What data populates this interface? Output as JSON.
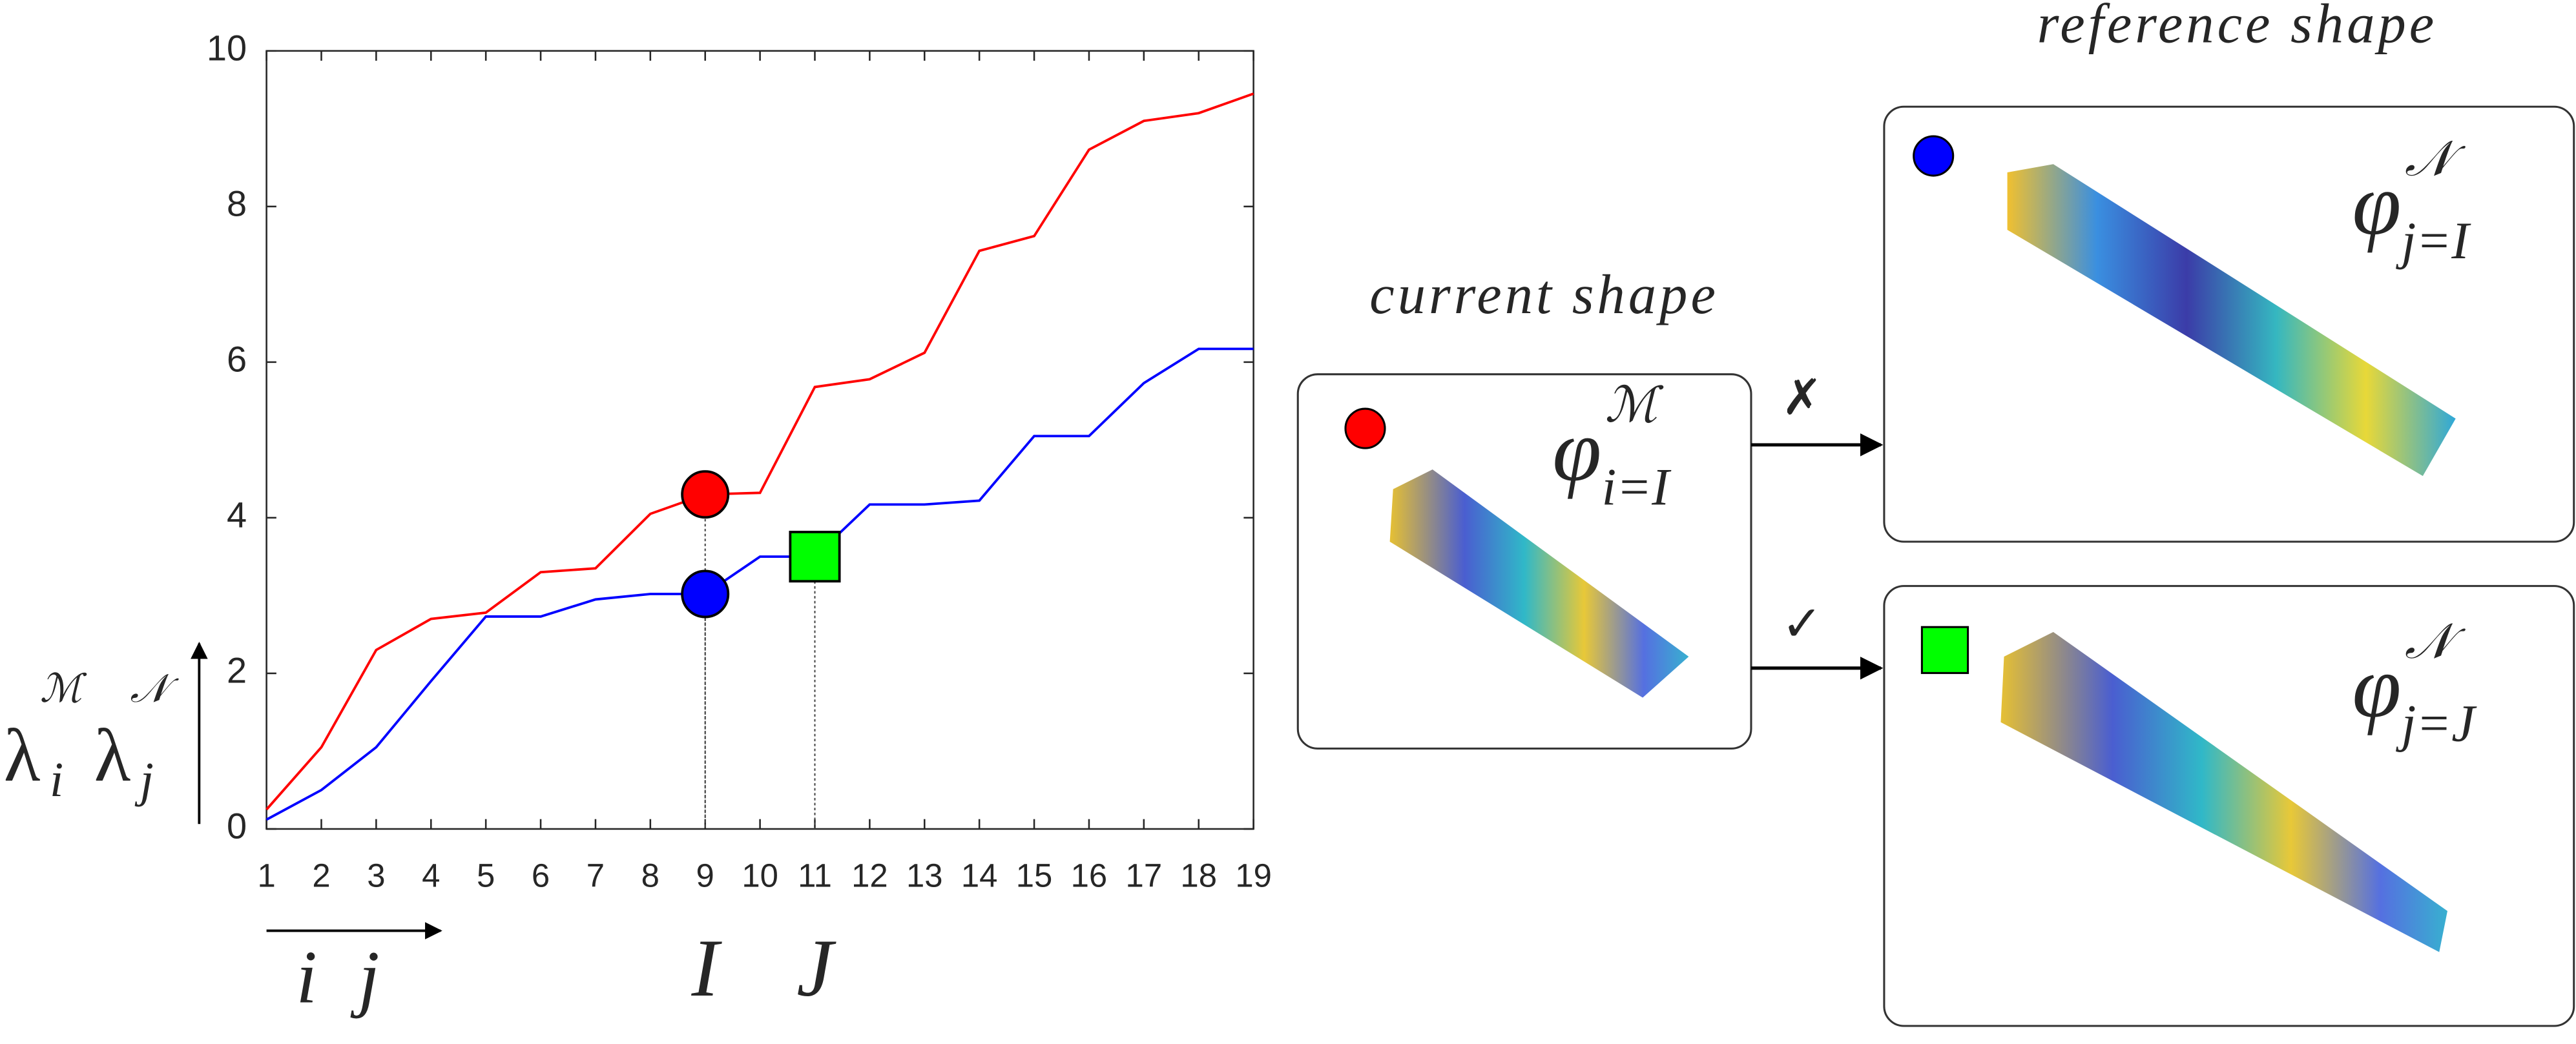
{
  "chart_data": {
    "type": "line",
    "x": [
      1,
      2,
      3,
      4,
      5,
      6,
      7,
      8,
      9,
      10,
      11,
      12,
      13,
      14,
      15,
      16,
      17,
      18,
      19
    ],
    "series": [
      {
        "color": "#ff0000",
        "values": [
          0.25,
          1.05,
          2.3,
          2.7,
          2.78,
          3.3,
          3.35,
          4.05,
          4.3,
          4.32,
          5.68,
          5.78,
          6.12,
          7.43,
          7.62,
          8.73,
          9.1,
          9.2,
          9.45
        ]
      },
      {
        "color": "#0000ff",
        "values": [
          0.12,
          0.5,
          1.05,
          1.9,
          2.73,
          2.73,
          2.95,
          3.02,
          3.02,
          3.5,
          3.5,
          4.17,
          4.17,
          4.22,
          5.05,
          5.05,
          5.73,
          6.17,
          6.17
        ]
      }
    ],
    "xlim": [
      1,
      19
    ],
    "xticks": [
      1,
      2,
      3,
      4,
      5,
      6,
      7,
      8,
      9,
      10,
      11,
      12,
      13,
      14,
      15,
      16,
      17,
      18,
      19
    ],
    "ylim": [
      0,
      10
    ],
    "yticks": [
      0,
      2,
      4,
      6,
      8,
      10
    ],
    "y_label": [
      {
        "symbol": "λ",
        "sub": "i",
        "sup": "ℳ",
        "color": "#ff0000"
      },
      {
        "symbol": "λ",
        "sub": "j",
        "sup": "𝒩",
        "color": "#0000ff"
      }
    ],
    "x_label": [
      {
        "text": "i",
        "color": "#ff0000"
      },
      {
        "text": "j",
        "color": "#0000ff"
      }
    ],
    "markers": [
      {
        "x": 9,
        "y": 4.3,
        "shape": "circle",
        "color": "#ff0000"
      },
      {
        "x": 9,
        "y": 3.02,
        "shape": "circle",
        "color": "#0000ff"
      },
      {
        "x": 11,
        "y": 3.5,
        "shape": "square",
        "color": "#00ff00"
      }
    ],
    "annotations": [
      {
        "x": 9,
        "label": "I"
      },
      {
        "x": 11,
        "label": "J"
      }
    ]
  },
  "diagram": {
    "current": {
      "title": "current shape",
      "marker": "circle",
      "marker_color": "#ff0000",
      "label": {
        "base": "φ",
        "sup": "ℳ",
        "sub": "i=I"
      }
    },
    "reference_title": "reference shape",
    "references": [
      {
        "marker": "circle",
        "marker_color": "#0000ff",
        "label": {
          "base": "φ",
          "sup": "𝒩",
          "sub": "j=I"
        }
      },
      {
        "marker": "square",
        "marker_color": "#00ff00",
        "label": {
          "base": "φ",
          "sup": "𝒩",
          "sub": "j=J"
        }
      }
    ],
    "arrows": [
      {
        "symbol": "✗",
        "color": "#ff0000"
      },
      {
        "symbol": "✓",
        "color": "#00ff00"
      }
    ]
  }
}
